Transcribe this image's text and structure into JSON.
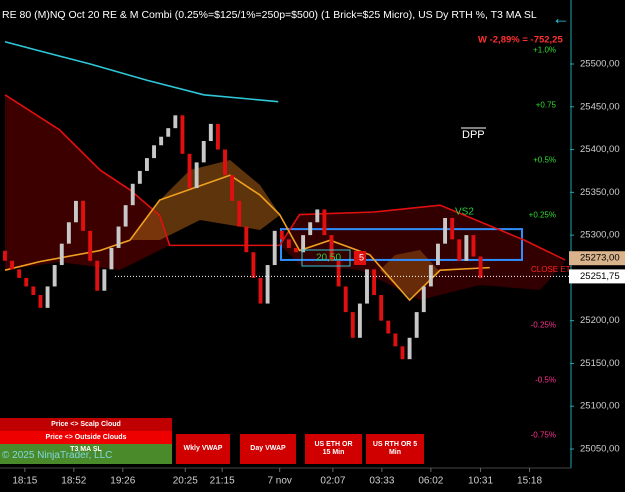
{
  "chart_data": {
    "type": "renko",
    "title": "RE 80 (M)NQ Oct 20 RE & M Combi (0.25%=$125/1%=250p=$500)  (1 Brick=$25 Micro), US Dy RTH %, T3 MA SL",
    "subtitle": "W -2,89% = -752,25",
    "up_color": "#c8c8c8",
    "down_color": "#e01010",
    "values": [
      25270,
      25260,
      25250,
      25240,
      25230,
      25215,
      25240,
      25265,
      25290,
      25315,
      25340,
      25305,
      25270,
      25235,
      25260,
      25285,
      25310,
      25335,
      25360,
      25375,
      25390,
      25405,
      25415,
      25425,
      25440,
      25395,
      25355,
      25385,
      25410,
      25430,
      25400,
      25370,
      25340,
      25310,
      25280,
      25250,
      25220,
      25265,
      25305,
      25295,
      25285,
      25280,
      25300,
      25315,
      25330,
      25300,
      25270,
      25240,
      25210,
      25180,
      25220,
      25260,
      25230,
      25200,
      25185,
      25170,
      25155,
      25180,
      25210,
      25240,
      25265,
      25290,
      25320,
      25295,
      25270,
      25300,
      25275,
      25250
    ],
    "lines": [
      {
        "color": "#2ec8d8",
        "x": [
          0,
          5,
          12,
          20,
          28,
          38.5
        ],
        "values": [
          25526,
          25515,
          25500,
          25481,
          25464,
          25456
        ]
      },
      {
        "color": "#e01010",
        "x": [
          0,
          7.7,
          13.4,
          17.6,
          21.8,
          23.2,
          38.7,
          41.5,
          52,
          61.3,
          73.2,
          78.9
        ],
        "values": [
          25464,
          25423,
          25376,
          25353,
          25323,
          25288,
          25288,
          25324,
          25327,
          25335,
          25294,
          25271
        ]
      },
      {
        "color": "#f0a020",
        "x": [
          0,
          4.9,
          13.4,
          17.6,
          21.8,
          31.7,
          35.9,
          38.7,
          41.5,
          45.8,
          51.4,
          57,
          61.3,
          68.3
        ],
        "values": [
          25259,
          25269,
          25282,
          25294,
          25341,
          25370,
          25347,
          25324,
          25282,
          25294,
          25277,
          25224,
          25259,
          25262
        ]
      }
    ],
    "range_box": [
      25271,
      25307
    ],
    "levels": [
      {
        "value": 25273,
        "label": "25273,00"
      },
      {
        "value": 25251.75,
        "label": "25251,75"
      }
    ],
    "annotations": [
      "DPP",
      "VS2",
      "CLOSE ET",
      "20,50",
      "5"
    ],
    "xlim": [
      -0.7,
      79.6
    ],
    "xticks": [
      {
        "value": 2.8,
        "label": "18:15"
      },
      {
        "value": 9.7,
        "label": "18:52"
      },
      {
        "value": 16.6,
        "label": "19:26"
      },
      {
        "value": 25.4,
        "label": "20:25"
      },
      {
        "value": 30.6,
        "label": "21:15"
      },
      {
        "value": 38.7,
        "label": "7 nov"
      },
      {
        "value": 46.2,
        "label": "02:07"
      },
      {
        "value": 53.1,
        "label": "03:33"
      },
      {
        "value": 60,
        "label": "06:02"
      },
      {
        "value": 67,
        "label": "10:31"
      },
      {
        "value": 73.9,
        "label": "15:18"
      }
    ],
    "ylim": [
      25027.8,
      25574.8
    ],
    "yticks": [
      {
        "value": 25050,
        "label": "25050,00"
      },
      {
        "value": 25100,
        "label": "25100,00"
      },
      {
        "value": 25150,
        "label": "25150,00"
      },
      {
        "value": 25200,
        "label": "25200,00"
      },
      {
        "value": 25250,
        "label": "25250,00"
      },
      {
        "value": 25300,
        "label": "25300,00"
      },
      {
        "value": 25350,
        "label": "25350,00"
      },
      {
        "value": 25400,
        "label": "25400,00"
      },
      {
        "value": 25450,
        "label": "25450,00"
      },
      {
        "value": 25500,
        "label": "25500,00"
      }
    ],
    "y2lim": [
      -0.8977,
      1.2295
    ],
    "y2ticks": [
      {
        "value": 1.0,
        "label": "+1.0%"
      },
      {
        "value": 0.75,
        "label": "+0.75"
      },
      {
        "value": 0.5,
        "label": "+0.5%"
      },
      {
        "value": 0.25,
        "label": "+0.25%"
      },
      {
        "value": -0.25,
        "label": "-0.25%"
      },
      {
        "value": -0.5,
        "label": "-0.5%"
      },
      {
        "value": -0.75,
        "label": "-0.75%"
      }
    ]
  },
  "controls": {
    "panel": [
      "Price <> Scalp Cloud",
      "Price <> Outside Clouds",
      "T3 MA SL"
    ],
    "copyright": "© 2025 NinjaTrader, LLC",
    "buttons": [
      "Wkly VWAP",
      "Day VWAP",
      "US ETH OR 15 Min",
      "US RTH OR 5 Min"
    ],
    "back": "←"
  }
}
